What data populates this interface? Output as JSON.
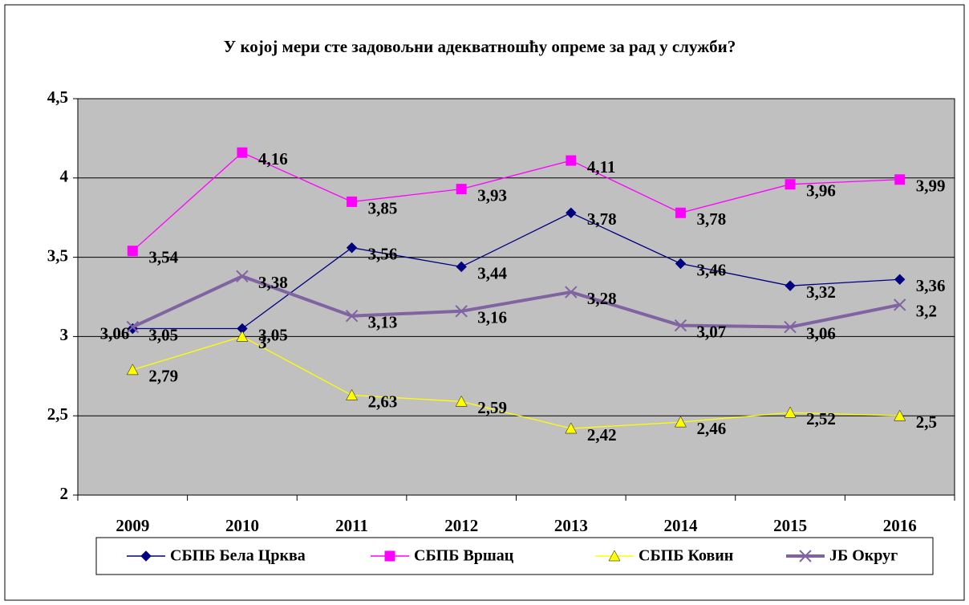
{
  "chart_data": {
    "type": "line",
    "title": "У којој мери сте задовољни адекватношћу опреме за рад у служби?",
    "categories": [
      "2009",
      "2010",
      "2011",
      "2012",
      "2013",
      "2014",
      "2015",
      "2016"
    ],
    "series": [
      {
        "name": "СБПБ Бела Црква",
        "color": "#000080",
        "marker": "diamond",
        "values": [
          3.05,
          3.05,
          3.56,
          3.44,
          3.78,
          3.46,
          3.32,
          3.36
        ],
        "value_labels": [
          "3,05",
          "3,05",
          "3,56",
          "3,44",
          "3,78",
          "3,46",
          "3,32",
          "3,36"
        ]
      },
      {
        "name": "СБПБ Вршац",
        "color": "#ff00ff",
        "marker": "square",
        "values": [
          3.54,
          4.16,
          3.85,
          3.93,
          4.11,
          3.78,
          3.96,
          3.99
        ],
        "value_labels": [
          "3,54",
          "4,16",
          "3,85",
          "3,93",
          "4,11",
          "3,78",
          "3,96",
          "3,99"
        ]
      },
      {
        "name": "СБПБ Ковин",
        "color": "#ffff00",
        "marker": "triangle",
        "values": [
          2.79,
          3,
          2.63,
          2.59,
          2.42,
          2.46,
          2.52,
          2.5
        ],
        "value_labels": [
          "2,79",
          "3",
          "2,63",
          "2,59",
          "2,42",
          "2,46",
          "2,52",
          "2,5"
        ]
      },
      {
        "name": "ЈБ Округ",
        "color": "#8064a2",
        "marker": "x",
        "values": [
          3.06,
          3.38,
          3.13,
          3.16,
          3.28,
          3.07,
          3.06,
          3.2
        ],
        "value_labels": [
          "3,06",
          "3,38",
          "3,13",
          "3,16",
          "3,28",
          "3,07",
          "3,06",
          "3,2"
        ]
      }
    ],
    "ylim": [
      2,
      4.5
    ],
    "yticks": [
      2,
      {
        "value": 2.5,
        "label": "2,5"
      },
      3,
      {
        "value": 3.5,
        "label": "3,5"
      },
      4,
      {
        "value": 4.5,
        "label": "4,5"
      }
    ],
    "grid": true,
    "legend": "bottom"
  }
}
